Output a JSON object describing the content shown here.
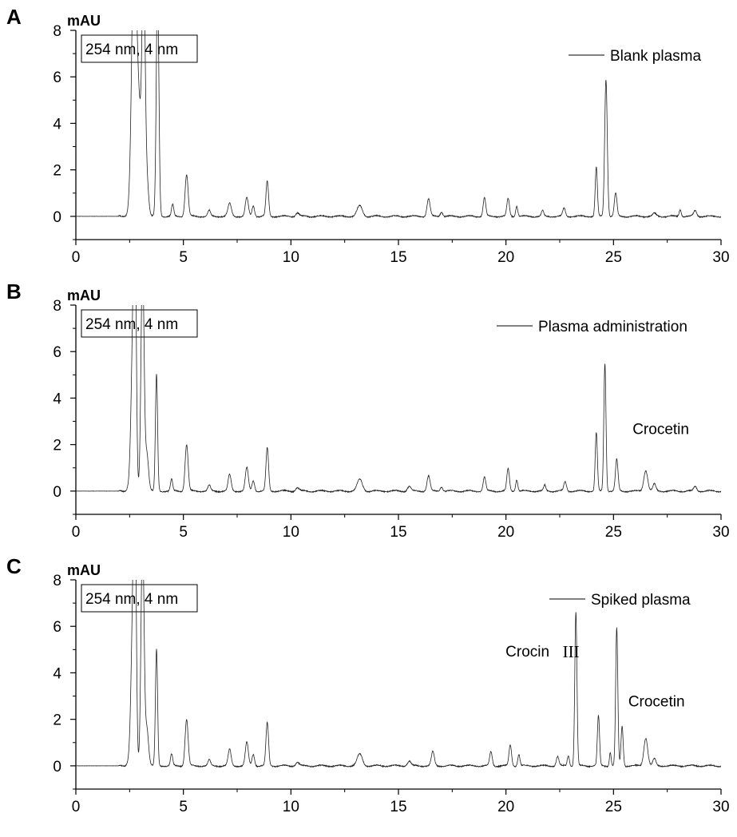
{
  "chart_data": [
    {
      "type": "line",
      "panel": "A",
      "ylabel": "mAU",
      "box_label": "254 nm, 4 nm",
      "legend": "Blank plasma",
      "xlim": [
        0,
        30
      ],
      "ylim": [
        -1,
        8
      ],
      "xticks": [
        0,
        5,
        10,
        15,
        20,
        25,
        30
      ],
      "yticks": [
        0,
        2,
        4,
        6,
        8
      ],
      "annotations": [],
      "peaks": [
        {
          "x": 2.7,
          "h": 10,
          "w": 0.1
        },
        {
          "x": 2.9,
          "h": 5,
          "w": 0.15
        },
        {
          "x": 3.15,
          "h": 10,
          "w": 0.07
        },
        {
          "x": 3.3,
          "h": 1.5,
          "w": 0.08
        },
        {
          "x": 3.8,
          "h": 10,
          "w": 0.06
        },
        {
          "x": 4.5,
          "h": 0.5,
          "w": 0.05
        },
        {
          "x": 5.15,
          "h": 1.8,
          "w": 0.07
        },
        {
          "x": 6.2,
          "h": 0.25,
          "w": 0.06
        },
        {
          "x": 7.15,
          "h": 0.55,
          "w": 0.08
        },
        {
          "x": 7.95,
          "h": 0.8,
          "w": 0.07
        },
        {
          "x": 8.25,
          "h": 0.45,
          "w": 0.06
        },
        {
          "x": 8.9,
          "h": 1.5,
          "w": 0.06
        },
        {
          "x": 10.3,
          "h": 0.15,
          "w": 0.08
        },
        {
          "x": 13.2,
          "h": 0.45,
          "w": 0.12
        },
        {
          "x": 16.4,
          "h": 0.75,
          "w": 0.07
        },
        {
          "x": 17.0,
          "h": 0.2,
          "w": 0.06
        },
        {
          "x": 19.0,
          "h": 0.8,
          "w": 0.06
        },
        {
          "x": 20.1,
          "h": 0.75,
          "w": 0.06
        },
        {
          "x": 20.5,
          "h": 0.45,
          "w": 0.05
        },
        {
          "x": 21.7,
          "h": 0.25,
          "w": 0.05
        },
        {
          "x": 22.7,
          "h": 0.35,
          "w": 0.06
        },
        {
          "x": 24.2,
          "h": 2.1,
          "w": 0.05
        },
        {
          "x": 24.65,
          "h": 5.9,
          "w": 0.06
        },
        {
          "x": 25.1,
          "h": 1.0,
          "w": 0.06
        },
        {
          "x": 26.9,
          "h": 0.12,
          "w": 0.08
        },
        {
          "x": 28.1,
          "h": 0.3,
          "w": 0.05
        },
        {
          "x": 28.8,
          "h": 0.25,
          "w": 0.07
        }
      ]
    },
    {
      "type": "line",
      "panel": "B",
      "ylabel": "mAU",
      "box_label": "254 nm, 4 nm",
      "legend": "Plasma administration",
      "xlim": [
        0,
        30
      ],
      "ylim": [
        -1,
        8
      ],
      "xticks": [
        0,
        5,
        10,
        15,
        20,
        25,
        30
      ],
      "yticks": [
        0,
        2,
        4,
        6,
        8
      ],
      "annotations": [
        {
          "text": "Crocetin",
          "x": 27.2,
          "y": 2.45
        }
      ],
      "peaks": [
        {
          "x": 2.65,
          "h": 5.5,
          "w": 0.08
        },
        {
          "x": 2.75,
          "h": 10,
          "w": 0.06
        },
        {
          "x": 3.1,
          "h": 10,
          "w": 0.07
        },
        {
          "x": 3.3,
          "h": 1.6,
          "w": 0.08
        },
        {
          "x": 3.75,
          "h": 5.0,
          "w": 0.05
        },
        {
          "x": 4.45,
          "h": 0.5,
          "w": 0.05
        },
        {
          "x": 5.15,
          "h": 2.0,
          "w": 0.07
        },
        {
          "x": 6.2,
          "h": 0.25,
          "w": 0.06
        },
        {
          "x": 7.15,
          "h": 0.7,
          "w": 0.07
        },
        {
          "x": 7.95,
          "h": 1.0,
          "w": 0.07
        },
        {
          "x": 8.25,
          "h": 0.45,
          "w": 0.06
        },
        {
          "x": 8.9,
          "h": 1.85,
          "w": 0.06
        },
        {
          "x": 10.3,
          "h": 0.15,
          "w": 0.08
        },
        {
          "x": 13.2,
          "h": 0.5,
          "w": 0.12
        },
        {
          "x": 15.5,
          "h": 0.2,
          "w": 0.08
        },
        {
          "x": 16.4,
          "h": 0.65,
          "w": 0.07
        },
        {
          "x": 17.0,
          "h": 0.2,
          "w": 0.06
        },
        {
          "x": 19.0,
          "h": 0.6,
          "w": 0.06
        },
        {
          "x": 20.1,
          "h": 0.95,
          "w": 0.06
        },
        {
          "x": 20.5,
          "h": 0.5,
          "w": 0.05
        },
        {
          "x": 21.8,
          "h": 0.25,
          "w": 0.05
        },
        {
          "x": 22.75,
          "h": 0.4,
          "w": 0.06
        },
        {
          "x": 24.2,
          "h": 2.5,
          "w": 0.05
        },
        {
          "x": 24.6,
          "h": 5.5,
          "w": 0.05
        },
        {
          "x": 25.15,
          "h": 1.35,
          "w": 0.06
        },
        {
          "x": 26.5,
          "h": 0.9,
          "w": 0.09
        },
        {
          "x": 26.9,
          "h": 0.3,
          "w": 0.07
        },
        {
          "x": 28.8,
          "h": 0.2,
          "w": 0.07
        }
      ]
    },
    {
      "type": "line",
      "panel": "C",
      "ylabel": "mAU",
      "box_label": "254 nm, 4 nm",
      "legend": "Spiked plasma",
      "xlim": [
        0,
        30
      ],
      "ylim": [
        -1,
        8
      ],
      "xticks": [
        0,
        5,
        10,
        15,
        20,
        25,
        30
      ],
      "yticks": [
        0,
        2,
        4,
        6,
        8
      ],
      "annotations": [
        {
          "text": "Crocin",
          "roman": "III",
          "x": 21.0,
          "y": 4.7
        },
        {
          "text": "Crocetin",
          "x": 27.0,
          "y": 2.55
        }
      ],
      "peaks": [
        {
          "x": 2.65,
          "h": 5.5,
          "w": 0.08
        },
        {
          "x": 2.75,
          "h": 10,
          "w": 0.06
        },
        {
          "x": 3.1,
          "h": 10,
          "w": 0.07
        },
        {
          "x": 3.3,
          "h": 1.6,
          "w": 0.08
        },
        {
          "x": 3.75,
          "h": 5.0,
          "w": 0.05
        },
        {
          "x": 4.45,
          "h": 0.5,
          "w": 0.05
        },
        {
          "x": 5.15,
          "h": 2.0,
          "w": 0.07
        },
        {
          "x": 6.2,
          "h": 0.25,
          "w": 0.06
        },
        {
          "x": 7.15,
          "h": 0.7,
          "w": 0.07
        },
        {
          "x": 7.95,
          "h": 1.0,
          "w": 0.07
        },
        {
          "x": 8.25,
          "h": 0.5,
          "w": 0.06
        },
        {
          "x": 8.9,
          "h": 1.85,
          "w": 0.06
        },
        {
          "x": 10.3,
          "h": 0.15,
          "w": 0.08
        },
        {
          "x": 13.2,
          "h": 0.5,
          "w": 0.12
        },
        {
          "x": 15.5,
          "h": 0.2,
          "w": 0.08
        },
        {
          "x": 16.6,
          "h": 0.6,
          "w": 0.07
        },
        {
          "x": 19.3,
          "h": 0.6,
          "w": 0.06
        },
        {
          "x": 20.2,
          "h": 0.9,
          "w": 0.06
        },
        {
          "x": 20.6,
          "h": 0.5,
          "w": 0.05
        },
        {
          "x": 22.4,
          "h": 0.4,
          "w": 0.06
        },
        {
          "x": 22.9,
          "h": 0.45,
          "w": 0.05
        },
        {
          "x": 23.25,
          "h": 6.6,
          "w": 0.05
        },
        {
          "x": 24.3,
          "h": 2.15,
          "w": 0.05
        },
        {
          "x": 24.85,
          "h": 0.6,
          "w": 0.04
        },
        {
          "x": 25.15,
          "h": 5.9,
          "w": 0.05
        },
        {
          "x": 25.4,
          "h": 1.7,
          "w": 0.05
        },
        {
          "x": 26.5,
          "h": 1.2,
          "w": 0.09
        },
        {
          "x": 26.9,
          "h": 0.3,
          "w": 0.07
        }
      ]
    }
  ]
}
